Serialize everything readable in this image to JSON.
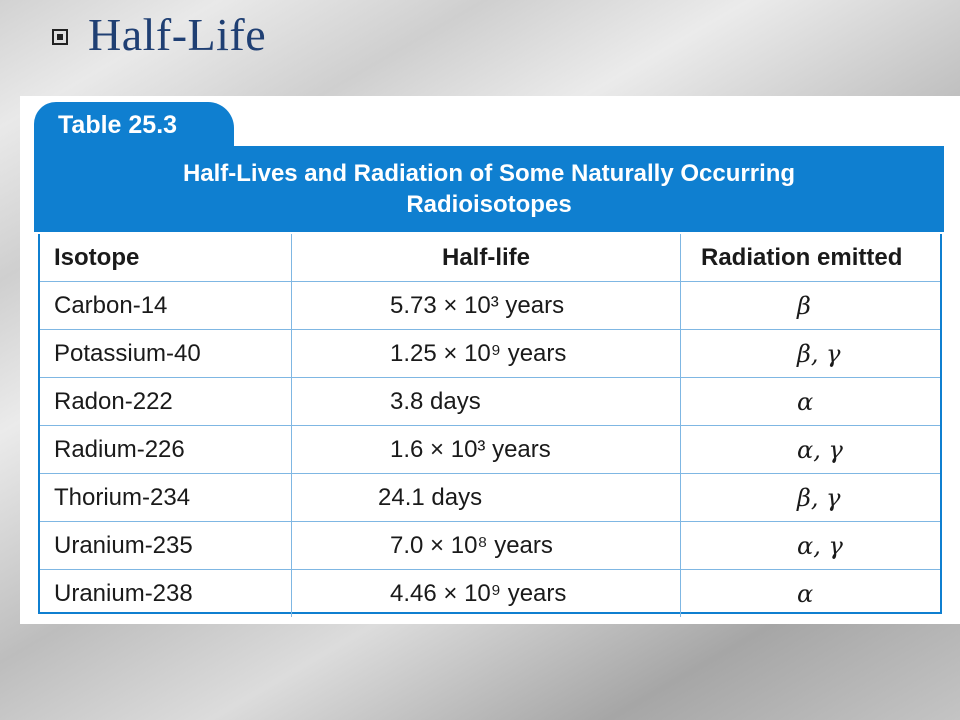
{
  "slide": {
    "title": "Half-Life"
  },
  "table": {
    "tab_label": "Table 25.3",
    "caption_line1": "Half-Lives and Radiation of Some Naturally Occurring",
    "caption_line2": "Radioisotopes",
    "headers": [
      "Isotope",
      "Half-life",
      "Radiation emitted"
    ],
    "rows": [
      {
        "isotope": "Carbon-14",
        "half_life": "5.73 × 10³ years",
        "radiation": "β"
      },
      {
        "isotope": "Potassium-40",
        "half_life": "1.25 × 10⁹ years",
        "radiation": "β, γ"
      },
      {
        "isotope": "Radon-222",
        "half_life": "3.8 days",
        "radiation": "α"
      },
      {
        "isotope": "Radium-226",
        "half_life": "1.6 × 10³ years",
        "radiation": "α, γ"
      },
      {
        "isotope": "Thorium-234",
        "half_life": "24.1 days",
        "radiation": "β, γ"
      },
      {
        "isotope": "Uranium-235",
        "half_life": "7.0 × 10⁸ years",
        "radiation": "α, γ"
      },
      {
        "isotope": "Uranium-238",
        "half_life": "4.46 × 10⁹ years",
        "radiation": "α"
      }
    ]
  },
  "colors": {
    "accent": "#0f7fd0",
    "title": "#1f3f73",
    "grid_line": "#7fb7e3"
  }
}
